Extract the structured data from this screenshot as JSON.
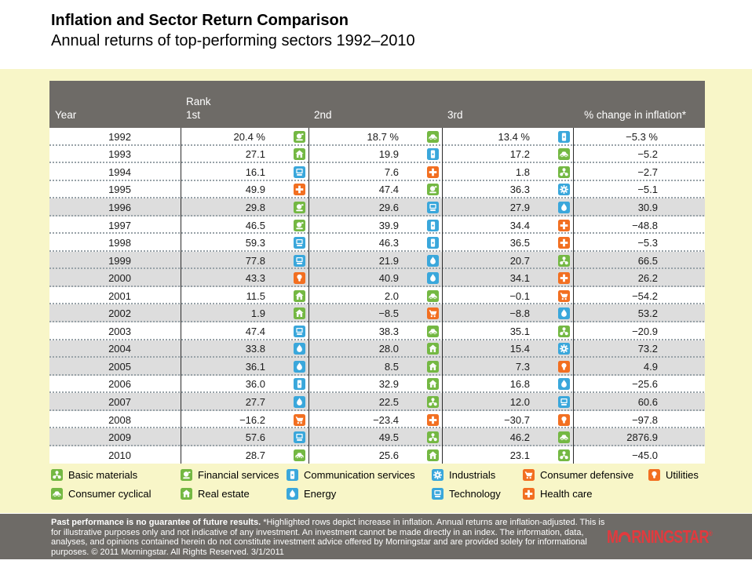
{
  "page": {
    "title": "Inflation and Sector Return Comparison",
    "subtitle": "Annual returns of top-performing sectors 1992–2010"
  },
  "table_headers": {
    "year": "Year",
    "rank_label": "Rank",
    "first": "1st",
    "second": "2nd",
    "third": "3rd",
    "inflation": "% change in inflation*"
  },
  "sectors": {
    "basic-materials": {
      "label": "Basic materials",
      "color": "#74b843"
    },
    "financial-services": {
      "label": "Financial services",
      "color": "#74b843"
    },
    "communication-services": {
      "label": "Communication services",
      "color": "#3aa7db"
    },
    "industrials": {
      "label": "Industrials",
      "color": "#3aa7db"
    },
    "consumer-defensive": {
      "label": "Consumer defensive",
      "color": "#f26f21"
    },
    "utilities": {
      "label": "Utilities",
      "color": "#f26f21"
    },
    "consumer-cyclical": {
      "label": "Consumer cyclical",
      "color": "#74b843"
    },
    "real-estate": {
      "label": "Real estate",
      "color": "#74b843"
    },
    "energy": {
      "label": "Energy",
      "color": "#3aa7db"
    },
    "technology": {
      "label": "Technology",
      "color": "#3aa7db"
    },
    "health-care": {
      "label": "Health care",
      "color": "#f26f21"
    }
  },
  "legend_rows": [
    [
      "basic-materials",
      "financial-services",
      "communication-services",
      "industrials",
      "consumer-defensive",
      "utilities"
    ],
    [
      "consumer-cyclical",
      "real-estate",
      "energy",
      "technology",
      "health-care"
    ]
  ],
  "chart_data": {
    "type": "table",
    "title": "Inflation and Sector Return Comparison",
    "subtitle": "Annual returns of top-performing sectors 1992–2010",
    "columns": [
      "Year",
      "Rank 1st",
      "Rank 2nd",
      "Rank 3rd",
      "% change in inflation*"
    ],
    "note": "Highlighted rows depict increase in inflation",
    "rows": [
      {
        "year": "1992",
        "highlighted": false,
        "inflation_change": "−5.3 %",
        "ranks": [
          {
            "return": "20.4 %",
            "sector": "financial-services"
          },
          {
            "return": "18.7 %",
            "sector": "consumer-cyclical"
          },
          {
            "return": "13.4 %",
            "sector": "communication-services"
          }
        ]
      },
      {
        "year": "1993",
        "highlighted": false,
        "inflation_change": "−5.2",
        "ranks": [
          {
            "return": "27.1",
            "sector": "real-estate"
          },
          {
            "return": "19.9",
            "sector": "communication-services"
          },
          {
            "return": "17.2",
            "sector": "consumer-cyclical"
          }
        ]
      },
      {
        "year": "1994",
        "highlighted": false,
        "inflation_change": "−2.7",
        "ranks": [
          {
            "return": "16.1",
            "sector": "technology"
          },
          {
            "return": "7.6",
            "sector": "health-care"
          },
          {
            "return": "1.8",
            "sector": "basic-materials"
          }
        ]
      },
      {
        "year": "1995",
        "highlighted": false,
        "inflation_change": "−5.1",
        "ranks": [
          {
            "return": "49.9",
            "sector": "health-care"
          },
          {
            "return": "47.4",
            "sector": "financial-services"
          },
          {
            "return": "36.3",
            "sector": "industrials"
          }
        ]
      },
      {
        "year": "1996",
        "highlighted": true,
        "inflation_change": "30.9",
        "ranks": [
          {
            "return": "29.8",
            "sector": "financial-services"
          },
          {
            "return": "29.6",
            "sector": "technology"
          },
          {
            "return": "27.9",
            "sector": "energy"
          }
        ]
      },
      {
        "year": "1997",
        "highlighted": false,
        "inflation_change": "−48.8",
        "ranks": [
          {
            "return": "46.5",
            "sector": "financial-services"
          },
          {
            "return": "39.9",
            "sector": "communication-services"
          },
          {
            "return": "34.4",
            "sector": "health-care"
          }
        ]
      },
      {
        "year": "1998",
        "highlighted": false,
        "inflation_change": "−5.3",
        "ranks": [
          {
            "return": "59.3",
            "sector": "technology"
          },
          {
            "return": "46.3",
            "sector": "communication-services"
          },
          {
            "return": "36.5",
            "sector": "health-care"
          }
        ]
      },
      {
        "year": "1999",
        "highlighted": true,
        "inflation_change": "66.5",
        "ranks": [
          {
            "return": "77.8",
            "sector": "technology"
          },
          {
            "return": "21.9",
            "sector": "energy"
          },
          {
            "return": "20.7",
            "sector": "basic-materials"
          }
        ]
      },
      {
        "year": "2000",
        "highlighted": true,
        "inflation_change": "26.2",
        "ranks": [
          {
            "return": "43.3",
            "sector": "utilities"
          },
          {
            "return": "40.9",
            "sector": "energy"
          },
          {
            "return": "34.1",
            "sector": "health-care"
          }
        ]
      },
      {
        "year": "2001",
        "highlighted": false,
        "inflation_change": "−54.2",
        "ranks": [
          {
            "return": "11.5",
            "sector": "real-estate"
          },
          {
            "return": "2.0",
            "sector": "consumer-cyclical"
          },
          {
            "return": "−0.1",
            "sector": "consumer-defensive"
          }
        ]
      },
      {
        "year": "2002",
        "highlighted": true,
        "inflation_change": "53.2",
        "ranks": [
          {
            "return": "1.9",
            "sector": "real-estate"
          },
          {
            "return": "−8.5",
            "sector": "consumer-defensive"
          },
          {
            "return": "−8.8",
            "sector": "energy"
          }
        ]
      },
      {
        "year": "2003",
        "highlighted": false,
        "inflation_change": "−20.9",
        "ranks": [
          {
            "return": "47.4",
            "sector": "technology"
          },
          {
            "return": "38.3",
            "sector": "consumer-cyclical"
          },
          {
            "return": "35.1",
            "sector": "basic-materials"
          }
        ]
      },
      {
        "year": "2004",
        "highlighted": true,
        "inflation_change": "73.2",
        "ranks": [
          {
            "return": "33.8",
            "sector": "energy"
          },
          {
            "return": "28.0",
            "sector": "real-estate"
          },
          {
            "return": "15.4",
            "sector": "industrials"
          }
        ]
      },
      {
        "year": "2005",
        "highlighted": true,
        "inflation_change": "4.9",
        "ranks": [
          {
            "return": "36.1",
            "sector": "energy"
          },
          {
            "return": "8.5",
            "sector": "real-estate"
          },
          {
            "return": "7.3",
            "sector": "utilities"
          }
        ]
      },
      {
        "year": "2006",
        "highlighted": false,
        "inflation_change": "−25.6",
        "ranks": [
          {
            "return": "36.0",
            "sector": "communication-services"
          },
          {
            "return": "32.9",
            "sector": "real-estate"
          },
          {
            "return": "16.8",
            "sector": "energy"
          }
        ]
      },
      {
        "year": "2007",
        "highlighted": true,
        "inflation_change": "60.6",
        "ranks": [
          {
            "return": "27.7",
            "sector": "energy"
          },
          {
            "return": "22.5",
            "sector": "basic-materials"
          },
          {
            "return": "12.0",
            "sector": "technology"
          }
        ]
      },
      {
        "year": "2008",
        "highlighted": false,
        "inflation_change": "−97.8",
        "ranks": [
          {
            "return": "−16.2",
            "sector": "consumer-defensive"
          },
          {
            "return": "−23.4",
            "sector": "health-care"
          },
          {
            "return": "−30.7",
            "sector": "utilities"
          }
        ]
      },
      {
        "year": "2009",
        "highlighted": true,
        "inflation_change": "2876.9",
        "ranks": [
          {
            "return": "57.6",
            "sector": "technology"
          },
          {
            "return": "49.5",
            "sector": "basic-materials"
          },
          {
            "return": "46.2",
            "sector": "consumer-cyclical"
          }
        ]
      },
      {
        "year": "2010",
        "highlighted": false,
        "inflation_change": "−45.0",
        "ranks": [
          {
            "return": "28.7",
            "sector": "consumer-cyclical"
          },
          {
            "return": "25.6",
            "sector": "real-estate"
          },
          {
            "return": "23.1",
            "sector": "basic-materials"
          }
        ]
      }
    ]
  },
  "footer": {
    "bold": "Past performance is no guarantee of future results.",
    "text": "*Highlighted rows depict increase in inflation. Annual returns are inflation-adjusted. This is for illustrative purposes only and not indicative of any investment. An investment cannot be made directly in an index. The information, data, analyses, and opinions contained herein do not constitute investment advice offered by Morningstar and are provided solely for informational purposes. © 2011 Morningstar. All Rights Reserved. 3/1/2011",
    "brand_m": "M",
    "brand_rest": "RNINGSTAR",
    "registered": "®"
  },
  "colors": {
    "background": "#ffffff",
    "panel_yellow": "#f8f6c8",
    "header_gray": "#6e6b67",
    "row_highlight": "#dddddd",
    "dot_separator": "#98a2a8",
    "column_divider": "#2b2b2b",
    "brand_red": "#e23a3e",
    "sector_green": "#74b843",
    "sector_blue": "#3aa7db",
    "sector_orange": "#f26f21"
  }
}
